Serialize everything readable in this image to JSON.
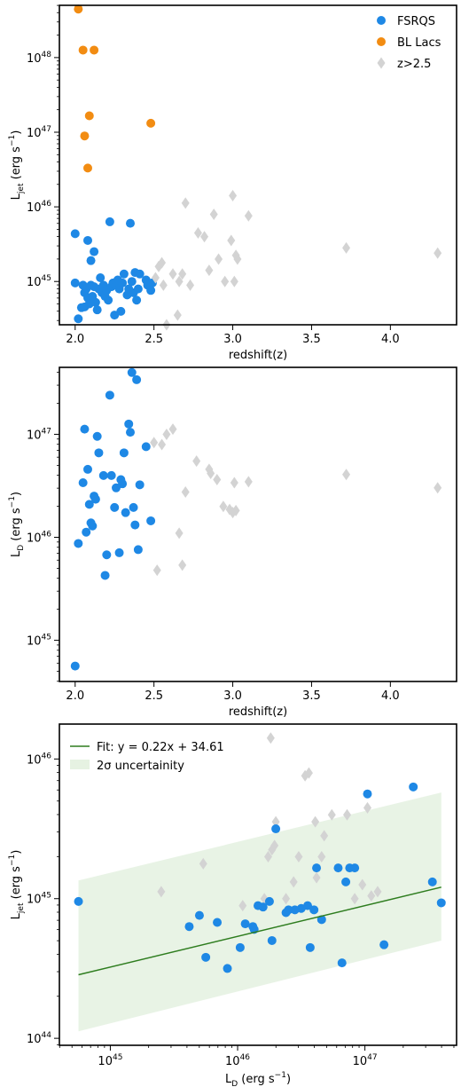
{
  "chart_data": [
    {
      "type": "scatter",
      "xlabel": "redshift(z)",
      "ylabel_main": "L",
      "ylabel_sub": "jet",
      "ylabel_unit": "(erg s",
      "ylabel_exp": "−1",
      "ylabel_close": ")",
      "xlim": [
        1.9,
        4.42
      ],
      "ylim_log10": [
        44.42,
        48.7
      ],
      "xscale": "linear",
      "yscale": "log",
      "xticks": [
        2.0,
        2.5,
        3.0,
        3.5,
        4.0
      ],
      "xtick_labels": [
        "2.0",
        "2.5",
        "3.0",
        "3.5",
        "4.0"
      ],
      "yticks_log10": [
        45,
        46,
        47,
        48
      ],
      "ytick_base": "10",
      "ytick_exps": [
        "45",
        "46",
        "47",
        "48"
      ],
      "legend": {
        "position": "top-right",
        "entries": [
          {
            "label": "FSRQS",
            "marker": "circle",
            "color": "#1e88e5"
          },
          {
            "label": "BL Lacs",
            "marker": "circle",
            "color": "#f28c12"
          },
          {
            "label": "z>2.5",
            "marker": "diamond",
            "color": "#d3d3d3"
          }
        ]
      },
      "series": [
        {
          "name": "FSRQS",
          "marker": "circle",
          "color": "#1e88e5",
          "x": [
            2.0,
            2.0,
            2.02,
            2.04,
            2.05,
            2.06,
            2.06,
            2.07,
            2.08,
            2.08,
            2.09,
            2.1,
            2.1,
            2.11,
            2.12,
            2.12,
            2.13,
            2.14,
            2.15,
            2.16,
            2.17,
            2.18,
            2.19,
            2.2,
            2.21,
            2.22,
            2.23,
            2.24,
            2.25,
            2.26,
            2.27,
            2.28,
            2.29,
            2.3,
            2.31,
            2.33,
            2.34,
            2.35,
            2.36,
            2.37,
            2.38,
            2.39,
            2.4,
            2.41,
            2.45,
            2.46,
            2.48,
            2.49
          ],
          "y_log10": [
            45.64,
            44.98,
            44.5,
            44.65,
            44.95,
            44.85,
            44.66,
            44.9,
            44.78,
            45.55,
            44.7,
            44.95,
            45.28,
            44.8,
            45.4,
            44.93,
            44.72,
            44.62,
            44.9,
            45.05,
            44.85,
            44.95,
            44.8,
            44.88,
            44.75,
            45.8,
            44.93,
            44.98,
            44.55,
            44.95,
            45.02,
            44.9,
            44.6,
            44.98,
            45.1,
            44.82,
            44.9,
            45.78,
            45.0,
            44.85,
            45.12,
            44.75,
            44.9,
            45.1,
            45.02,
            44.95,
            44.88,
            44.98
          ]
        },
        {
          "name": "BL Lacs",
          "marker": "circle",
          "color": "#f28c12",
          "x": [
            2.02,
            2.05,
            2.06,
            2.08,
            2.09,
            2.12,
            2.48
          ],
          "y_log10": [
            48.65,
            48.1,
            46.95,
            46.52,
            47.22,
            48.1,
            47.12
          ]
        },
        {
          "name": "z>2.5",
          "marker": "diamond",
          "color": "#d3d3d3",
          "x": [
            2.51,
            2.53,
            2.55,
            2.56,
            2.58,
            2.62,
            2.65,
            2.66,
            2.68,
            2.7,
            2.73,
            2.78,
            2.82,
            2.85,
            2.88,
            2.91,
            2.95,
            2.99,
            3.0,
            3.01,
            3.02,
            3.03,
            3.1,
            3.72,
            4.3
          ],
          "y_log10": [
            45.05,
            45.2,
            45.25,
            44.95,
            44.42,
            45.1,
            44.55,
            45.0,
            45.1,
            46.05,
            44.95,
            45.65,
            45.6,
            45.15,
            45.9,
            45.3,
            45.0,
            45.55,
            46.15,
            45.0,
            45.35,
            45.3,
            45.88,
            45.45,
            45.38
          ]
        }
      ]
    },
    {
      "type": "scatter",
      "xlabel": "redshift(z)",
      "ylabel_main": "L",
      "ylabel_sub": "D",
      "ylabel_unit": "(erg s",
      "ylabel_exp": "−1",
      "ylabel_close": ")",
      "xlim": [
        1.9,
        4.42
      ],
      "ylim_log10": [
        44.6,
        47.65
      ],
      "xscale": "linear",
      "yscale": "log",
      "xticks": [
        2.0,
        2.5,
        3.0,
        3.5,
        4.0
      ],
      "xtick_labels": [
        "2.0",
        "2.5",
        "3.0",
        "3.5",
        "4.0"
      ],
      "yticks_log10": [
        45,
        46,
        47
      ],
      "ytick_base": "10",
      "ytick_exps": [
        "45",
        "46",
        "47"
      ],
      "series": [
        {
          "name": "FSRQS",
          "marker": "circle",
          "color": "#1e88e5",
          "x": [
            2.0,
            2.02,
            2.05,
            2.06,
            2.07,
            2.08,
            2.09,
            2.1,
            2.11,
            2.12,
            2.13,
            2.14,
            2.15,
            2.18,
            2.19,
            2.2,
            2.22,
            2.23,
            2.25,
            2.26,
            2.28,
            2.29,
            2.3,
            2.31,
            2.32,
            2.34,
            2.35,
            2.36,
            2.37,
            2.38,
            2.39,
            2.4,
            2.41,
            2.45,
            2.48
          ],
          "y_log10": [
            44.75,
            45.94,
            46.53,
            47.05,
            46.05,
            46.66,
            46.32,
            46.14,
            46.11,
            46.4,
            46.37,
            46.98,
            46.82,
            46.6,
            45.63,
            45.83,
            47.38,
            46.6,
            46.29,
            46.48,
            45.85,
            46.56,
            46.52,
            46.82,
            46.24,
            47.1,
            47.02,
            47.6,
            46.29,
            46.12,
            47.53,
            45.88,
            46.51,
            46.88,
            46.16
          ]
        },
        {
          "name": "z>2.5",
          "marker": "diamond",
          "color": "#d3d3d3",
          "x": [
            2.5,
            2.52,
            2.55,
            2.58,
            2.62,
            2.66,
            2.68,
            2.7,
            2.77,
            2.85,
            2.86,
            2.9,
            2.94,
            2.98,
            3.0,
            3.01,
            3.02,
            3.1,
            3.72,
            4.3
          ],
          "y_log10": [
            46.92,
            45.68,
            46.9,
            47.0,
            47.05,
            46.04,
            45.73,
            46.44,
            46.74,
            46.66,
            46.62,
            46.56,
            46.3,
            46.27,
            46.24,
            46.53,
            46.26,
            46.54,
            46.61,
            46.48
          ]
        }
      ]
    },
    {
      "type": "scatter",
      "xlabel_main": "L",
      "xlabel_sub": "D",
      "xlabel_unit": "(erg s",
      "xlabel_exp": "−1",
      "xlabel_close": ")",
      "ylabel_main": "L",
      "ylabel_sub": "jet",
      "ylabel_unit": "(erg s",
      "ylabel_exp": "−1",
      "ylabel_close": ")",
      "xlim_log10": [
        44.6,
        47.72
      ],
      "ylim_log10": [
        43.95,
        46.25
      ],
      "xscale": "log",
      "yscale": "log",
      "xticks_log10": [
        45,
        46,
        47
      ],
      "yticks_log10": [
        44,
        45,
        46
      ],
      "tick_base": "10",
      "xtick_exps": [
        "45",
        "46",
        "47"
      ],
      "ytick_exps": [
        "44",
        "45",
        "46"
      ],
      "legend": {
        "position": "top-left",
        "entries": [
          {
            "label": "Fit: y = 0.22x + 34.61",
            "marker": "line",
            "color": "#2e7d1f"
          },
          {
            "label": "2σ uncertainity",
            "marker": "patch",
            "color": "#e6f2e2"
          }
        ]
      },
      "fit": {
        "slope": 0.22,
        "intercept": 34.61,
        "band_upper_log10": [
          45.13,
          45.76
        ],
        "band_lower_log10": [
          44.05,
          44.7
        ],
        "x_range_log10": [
          44.75,
          47.6
        ]
      },
      "series": [
        {
          "name": "FSRQS",
          "marker": "circle",
          "color": "#1e88e5",
          "x_log10": [
            44.75,
            45.62,
            45.7,
            45.75,
            45.84,
            45.92,
            46.02,
            46.06,
            46.12,
            46.13,
            46.16,
            46.2,
            46.27,
            46.3,
            46.38,
            46.4,
            46.45,
            46.5,
            46.55,
            46.57,
            46.6,
            46.62,
            46.66,
            46.79,
            46.82,
            46.85,
            46.88,
            46.92,
            47.02,
            47.15,
            47.38,
            47.53,
            47.6,
            46.25
          ],
          "y_log10": [
            44.98,
            44.8,
            44.88,
            44.58,
            44.83,
            44.5,
            44.65,
            44.82,
            44.8,
            44.78,
            44.95,
            44.94,
            44.7,
            45.5,
            44.9,
            44.92,
            44.92,
            44.93,
            44.95,
            44.65,
            44.92,
            45.22,
            44.85,
            45.22,
            44.54,
            45.12,
            45.22,
            45.22,
            45.75,
            44.67,
            45.8,
            45.12,
            44.97,
            44.98
          ]
        },
        {
          "name": "z>2.5",
          "marker": "diamond",
          "color": "#d3d3d3",
          "x_log10": [
            45.4,
            45.73,
            46.04,
            46.21,
            46.24,
            46.26,
            46.27,
            46.29,
            46.3,
            46.38,
            46.44,
            46.48,
            46.53,
            46.56,
            46.61,
            46.62,
            46.66,
            46.68,
            46.74,
            46.86,
            46.92,
            46.98,
            47.02,
            47.05,
            47.1
          ],
          "y_log10": [
            45.05,
            45.25,
            44.95,
            45.0,
            45.3,
            46.15,
            45.35,
            45.38,
            45.55,
            45.0,
            45.12,
            45.3,
            45.88,
            45.9,
            45.55,
            45.15,
            45.3,
            45.45,
            45.6,
            45.6,
            45.0,
            45.1,
            45.65,
            45.02,
            45.05
          ]
        }
      ]
    }
  ]
}
